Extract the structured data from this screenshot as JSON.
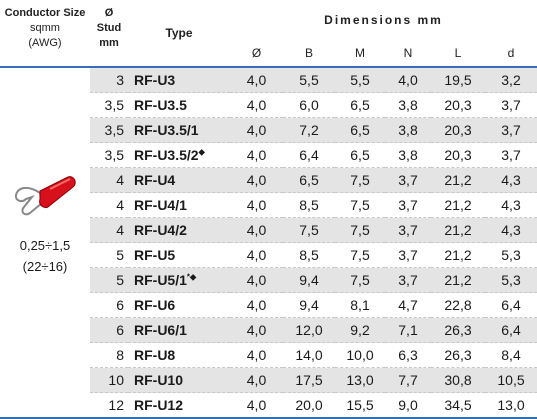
{
  "header": {
    "conductor": [
      "Conductor Size",
      "sqmm",
      "(AWG)"
    ],
    "stud": [
      "Ø",
      "Stud",
      "mm"
    ],
    "type": "Type",
    "dimensions": "Dimensions mm",
    "dim_columns": [
      "Ø",
      "B",
      "M",
      "N",
      "L",
      "d"
    ]
  },
  "conductor_range": [
    "0,25÷1,5",
    "(22÷16)"
  ],
  "rows": [
    {
      "stud": "3",
      "type": "RF-U3",
      "dims": [
        "4,0",
        "5,5",
        "5,5",
        "4,0",
        "19,5",
        "3,2"
      ]
    },
    {
      "stud": "3,5",
      "type": "RF-U3.5",
      "dims": [
        "4,0",
        "6,0",
        "6,5",
        "3,8",
        "20,3",
        "3,7"
      ]
    },
    {
      "stud": "3,5",
      "type": "RF-U3.5/1",
      "dims": [
        "4,0",
        "7,2",
        "6,5",
        "3,8",
        "20,3",
        "3,7"
      ]
    },
    {
      "stud": "3,5",
      "type": "RF-U3.5/2",
      "mark": "◆",
      "dims": [
        "4,0",
        "6,4",
        "6,5",
        "3,8",
        "20,3",
        "3,7"
      ]
    },
    {
      "stud": "4",
      "type": "RF-U4",
      "dims": [
        "4,0",
        "6,5",
        "7,5",
        "3,7",
        "21,2",
        "4,3"
      ]
    },
    {
      "stud": "4",
      "type": "RF-U4/1",
      "dims": [
        "4,0",
        "8,5",
        "7,5",
        "3,7",
        "21,2",
        "4,3"
      ]
    },
    {
      "stud": "4",
      "type": "RF-U4/2",
      "dims": [
        "4,0",
        "7,5",
        "7,5",
        "3,7",
        "21,2",
        "4,3"
      ]
    },
    {
      "stud": "5",
      "type": "RF-U5",
      "dims": [
        "4,0",
        "8,5",
        "7,5",
        "3,7",
        "21,2",
        "5,3"
      ]
    },
    {
      "stud": "5",
      "type": "RF-U5/1",
      "mark": "*◆",
      "dims": [
        "4,0",
        "9,4",
        "7,5",
        "3,7",
        "21,2",
        "5,3"
      ]
    },
    {
      "stud": "6",
      "type": "RF-U6",
      "dims": [
        "4,0",
        "9,4",
        "8,1",
        "4,7",
        "22,8",
        "6,4"
      ]
    },
    {
      "stud": "6",
      "type": "RF-U6/1",
      "dims": [
        "4,0",
        "12,0",
        "9,2",
        "7,1",
        "26,3",
        "6,4"
      ]
    },
    {
      "stud": "8",
      "type": "RF-U8",
      "dims": [
        "4,0",
        "14,0",
        "10,0",
        "6,3",
        "26,3",
        "8,4"
      ]
    },
    {
      "stud": "10",
      "type": "RF-U10",
      "dims": [
        "4,0",
        "17,5",
        "13,0",
        "7,7",
        "30,8",
        "10,5"
      ]
    },
    {
      "stud": "12",
      "type": "RF-U12",
      "dims": [
        "4,0",
        "20,0",
        "15,5",
        "9,0",
        "34,5",
        "13,0"
      ]
    }
  ]
}
